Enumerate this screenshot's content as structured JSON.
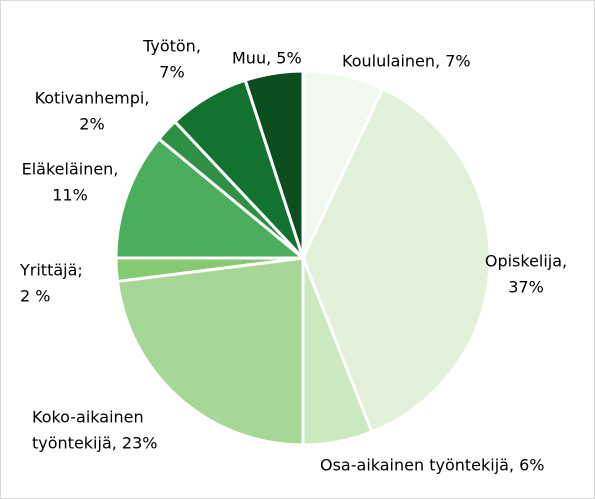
{
  "chart_data": {
    "type": "pie",
    "values": [
      7,
      37,
      6,
      23,
      2,
      11,
      2,
      7,
      5
    ],
    "value_labels": [
      [
        "Koululainen, 7%"
      ],
      [
        "Opiskelija,",
        "37%"
      ],
      [
        "Osa-aikainen työntekijä, 6%"
      ],
      [
        "Koko-aikainen",
        "työntekijä, 23%"
      ],
      [
        "Yrittäjä;",
        "2 %"
      ],
      [
        "Eläkeläinen,",
        "11%"
      ],
      [
        "Kotivanhempi,",
        "2%"
      ],
      [
        "Työtön,",
        "7%"
      ],
      [
        "Muu, 5%"
      ]
    ],
    "colors": [
      "#f1f8ee",
      "#e2f2da",
      "#cce9c1",
      "#a6d796",
      "#85c972",
      "#4bae5c",
      "#2f8f45",
      "#12722f",
      "#0a4d1e"
    ]
  }
}
